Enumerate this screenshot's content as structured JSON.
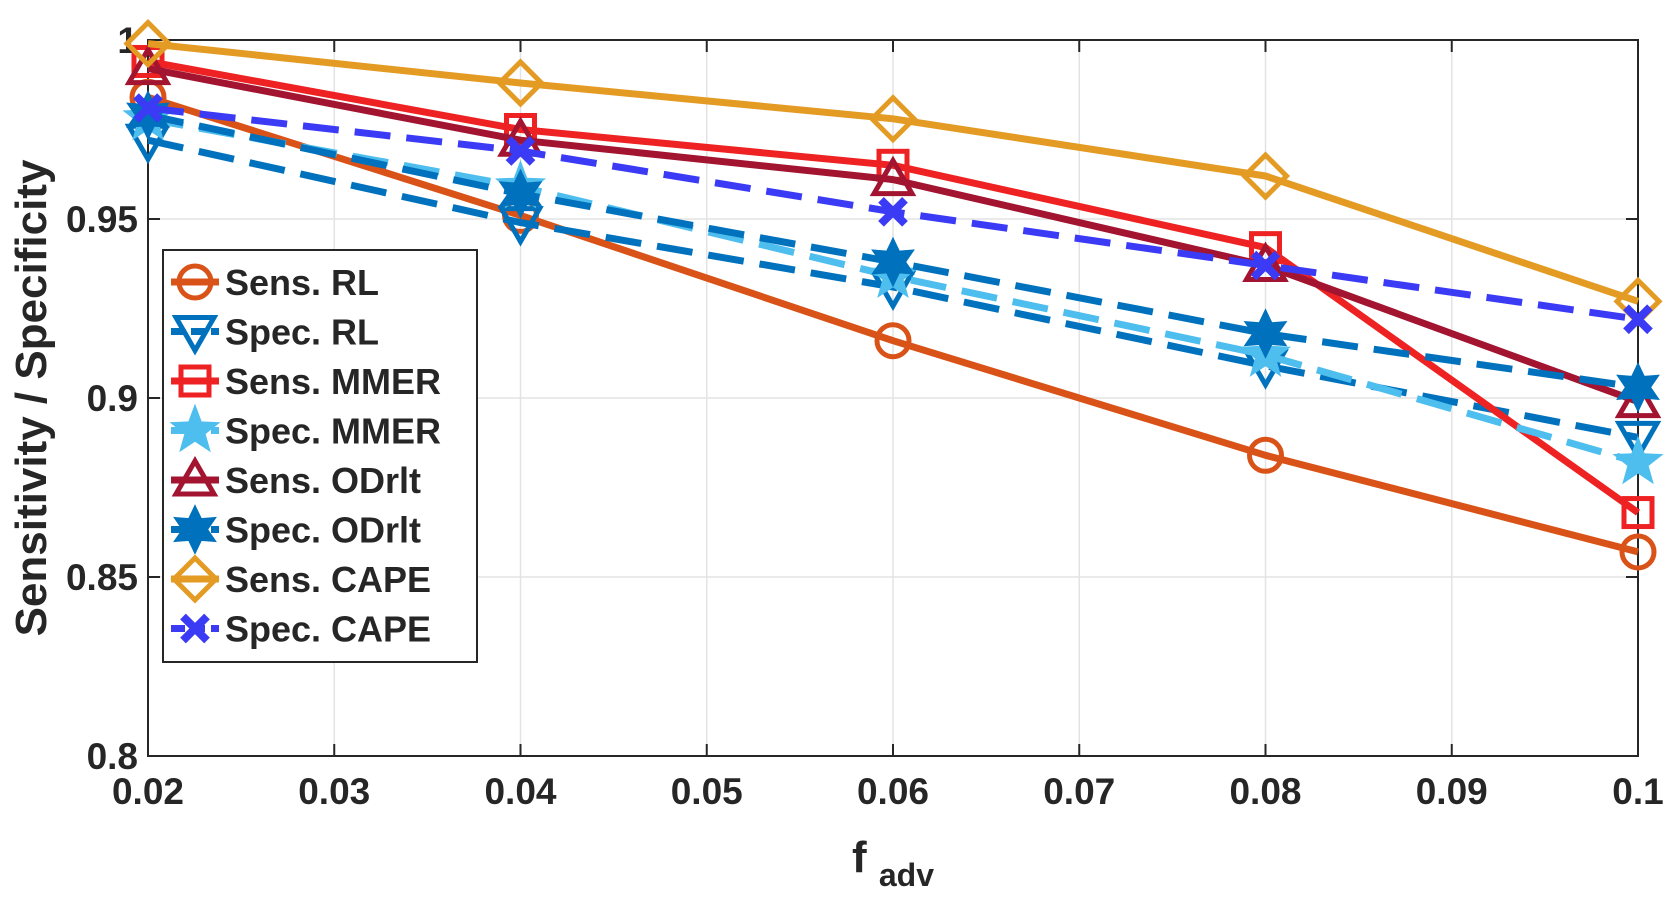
{
  "chart_data": {
    "type": "line",
    "title": "",
    "xlabel_main": "f",
    "xlabel_sub": "adv",
    "ylabel": "Sensitivity / Specificity",
    "xlim": [
      0.02,
      0.1
    ],
    "ylim": [
      0.8,
      1.0
    ],
    "x_ticks": [
      "0.02",
      "0.03",
      "0.04",
      "0.05",
      "0.06",
      "0.07",
      "0.08",
      "0.09",
      "0.1"
    ],
    "y_ticks": [
      "0.8",
      "0.85",
      "0.9",
      "0.95",
      "1"
    ],
    "grid": true,
    "legend_position": "left-middle",
    "x": [
      0.02,
      0.04,
      0.06,
      0.08,
      0.1
    ],
    "series": [
      {
        "name": "Sens. RL",
        "values": [
          0.984,
          0.951,
          0.916,
          0.884,
          0.857
        ],
        "color": "#D95319",
        "dash": false,
        "marker": "circle"
      },
      {
        "name": "Spec. RL",
        "values": [
          0.972,
          0.949,
          0.931,
          0.909,
          0.889
        ],
        "color": "#0072BD",
        "dash": true,
        "marker": "triangle-down"
      },
      {
        "name": "Sens. MMER",
        "values": [
          0.994,
          0.975,
          0.965,
          0.942,
          0.868
        ],
        "color": "#EE2222",
        "dash": false,
        "marker": "square"
      },
      {
        "name": "Spec. MMER",
        "values": [
          0.978,
          0.959,
          0.934,
          0.912,
          0.882
        ],
        "color": "#4DBEEE",
        "dash": true,
        "marker": "pentagram"
      },
      {
        "name": "Sens. ODrlt",
        "values": [
          0.992,
          0.972,
          0.961,
          0.937,
          0.899
        ],
        "color": "#A2142F",
        "dash": false,
        "marker": "triangle-up"
      },
      {
        "name": "Spec. ODrlt",
        "values": [
          0.979,
          0.957,
          0.938,
          0.918,
          0.903
        ],
        "color": "#0072BD",
        "dash": true,
        "marker": "hexagram"
      },
      {
        "name": "Sens. CAPE",
        "values": [
          0.999,
          0.988,
          0.978,
          0.962,
          0.927
        ],
        "color": "#E49B24",
        "dash": false,
        "marker": "diamond"
      },
      {
        "name": "Spec. CAPE",
        "values": [
          0.981,
          0.969,
          0.952,
          0.937,
          0.922
        ],
        "color": "#3B3BF6",
        "dash": true,
        "marker": "x"
      }
    ]
  }
}
